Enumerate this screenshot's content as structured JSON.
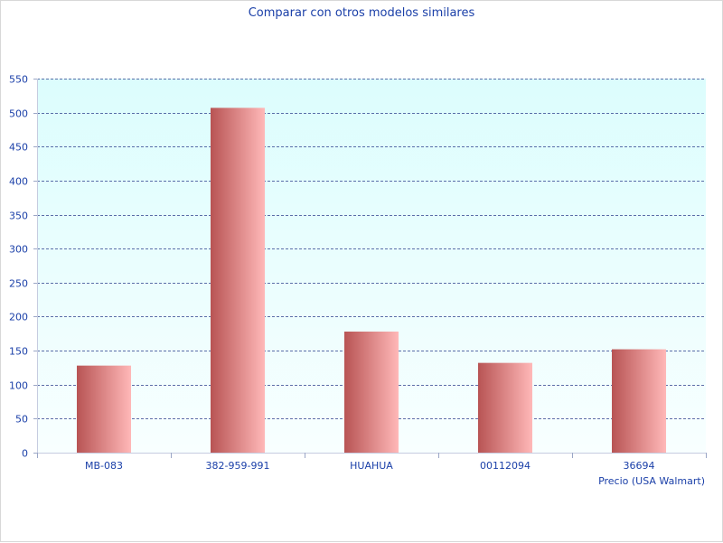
{
  "chart_data": {
    "type": "bar",
    "title": "Comparar con otros modelos similares",
    "xlabel": "Precio (USA Walmart)",
    "ylabel": "",
    "categories": [
      "MB-083",
      "382-959-991",
      "HUAHUA",
      "00112094",
      "36694"
    ],
    "values": [
      128,
      507,
      178,
      132,
      152
    ],
    "ylim": [
      0,
      550
    ],
    "yticks": [
      "0",
      "50",
      "100",
      "150",
      "200",
      "250",
      "300",
      "350",
      "400",
      "450",
      "500",
      "550"
    ],
    "grid": true,
    "colors": {
      "bar_dark": "#b85454",
      "bar_light": "#ffb8b8",
      "plot_bg_top": "#dcfdfd",
      "plot_bg_bottom": "#f8ffff",
      "grid": "#2b3f8c",
      "axis_text": "#1a3fa8"
    }
  }
}
